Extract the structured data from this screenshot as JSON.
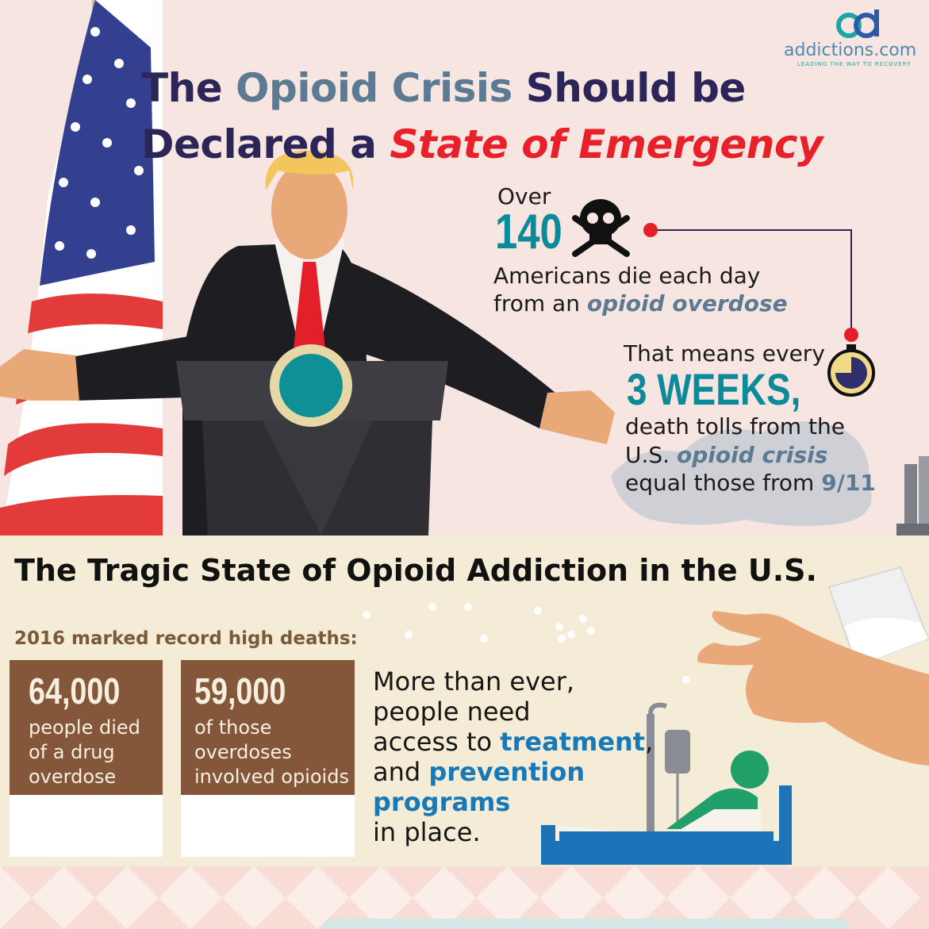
{
  "logo": {
    "name": "addictions.com",
    "tagline": "LEADING THE WAY TO RECOVERY"
  },
  "header": {
    "line1": [
      "The",
      "Opioid Crisis",
      "Should be"
    ],
    "line2": [
      "Declared a",
      "State of Emergency"
    ]
  },
  "daily_deaths": {
    "prefix": "Over",
    "number": 140,
    "line1": "Americans die each day",
    "line2": [
      "from an",
      "opioid overdose"
    ]
  },
  "comparison": {
    "lead": "That means every",
    "period": "3 WEEKS,",
    "line1": "death tolls from the",
    "line2": [
      "U.S.",
      "opioid crisis"
    ],
    "line3": [
      "equal those from",
      "9/11"
    ]
  },
  "section": {
    "title": "The Tragic State of Opioid Addiction in the U.S.",
    "record_label": "2016 marked record high deaths:",
    "cards": [
      {
        "number": "64,000",
        "description": "people died of a drug overdose"
      },
      {
        "number": "59,000",
        "description": "of those overdoses involved opioids"
      }
    ],
    "message": [
      [
        "More than ever,"
      ],
      [
        "people need"
      ],
      [
        "access to",
        "treatment",
        ","
      ],
      [
        "and",
        "prevention"
      ],
      [
        "programs"
      ],
      [
        "in place."
      ]
    ]
  }
}
